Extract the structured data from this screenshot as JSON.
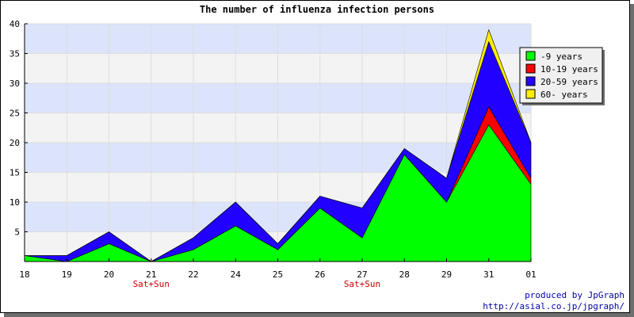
{
  "chart_data": {
    "type": "area",
    "stacked": true,
    "title": "The number of influenza infection persons",
    "categories": [
      "18",
      "19",
      "20",
      "21",
      "22",
      "24",
      "25",
      "26",
      "27",
      "28",
      "29",
      "31",
      "01"
    ],
    "weekend_labels": [
      {
        "category": "21",
        "text": "Sat+Sun"
      },
      {
        "category": "27",
        "text": "Sat+Sun"
      }
    ],
    "ylim": [
      0,
      40
    ],
    "yticks": [
      5,
      10,
      15,
      20,
      25,
      30,
      35,
      40
    ],
    "grid": true,
    "legend_position": "top-right",
    "series": [
      {
        "name": "-9 years",
        "color": "#00ff00",
        "values": [
          1,
          0,
          3,
          0,
          2,
          6,
          2,
          9,
          4,
          18,
          10,
          23,
          13
        ]
      },
      {
        "name": "10-19 years",
        "color": "#ff0000",
        "values": [
          0,
          0,
          0,
          0,
          0,
          0,
          0,
          0,
          0,
          0,
          0,
          3,
          1
        ]
      },
      {
        "name": "20-59 years",
        "color": "#2200ff",
        "values": [
          0,
          1,
          2,
          0,
          2,
          4,
          1,
          2,
          5,
          1,
          4,
          11,
          6
        ]
      },
      {
        "name": "60- years",
        "color": "#ffee00",
        "values": [
          0,
          0,
          0,
          0,
          0,
          0,
          0,
          0,
          0,
          0,
          0,
          2,
          0
        ]
      }
    ]
  },
  "credit": {
    "line1": "produced by JpGraph",
    "line2": "http://asial.co.jp/jpgraph/"
  }
}
